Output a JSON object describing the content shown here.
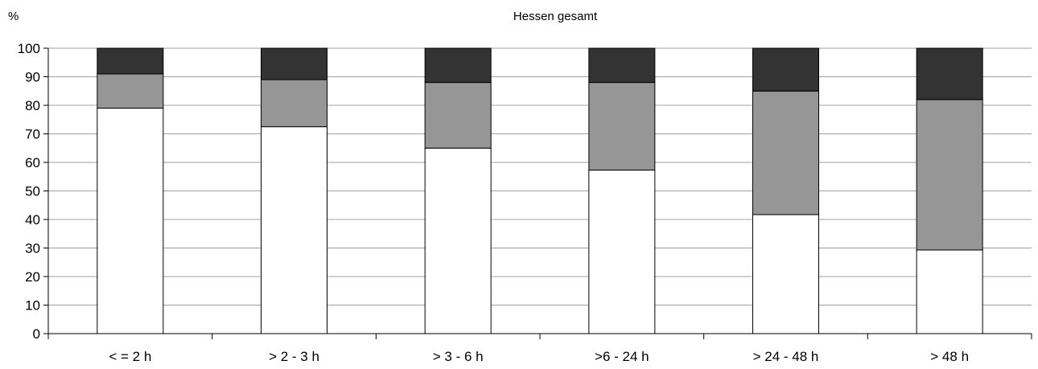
{
  "chart_data": {
    "type": "bar",
    "stacked": true,
    "title": "Hessen gesamt",
    "ylabel": "%",
    "xlabel": "",
    "ylim": [
      0,
      100
    ],
    "yticks": [
      0,
      10,
      20,
      30,
      40,
      50,
      60,
      70,
      80,
      90,
      100
    ],
    "grid": true,
    "legend": "none",
    "categories": [
      "< = 2 h",
      "> 2 - 3 h",
      "> 3 - 6 h",
      ">6 - 24 h",
      "> 24 - 48 h",
      "> 48 h"
    ],
    "series": [
      {
        "color": "#ffffff",
        "values": [
          79,
          72.5,
          65,
          57.3,
          41.7,
          29.3
        ]
      },
      {
        "color": "#969696",
        "values": [
          12,
          16.5,
          23,
          30.7,
          43.3,
          52.7
        ]
      },
      {
        "color": "#333333",
        "values": [
          9,
          11,
          12,
          12,
          15,
          18
        ]
      }
    ]
  }
}
